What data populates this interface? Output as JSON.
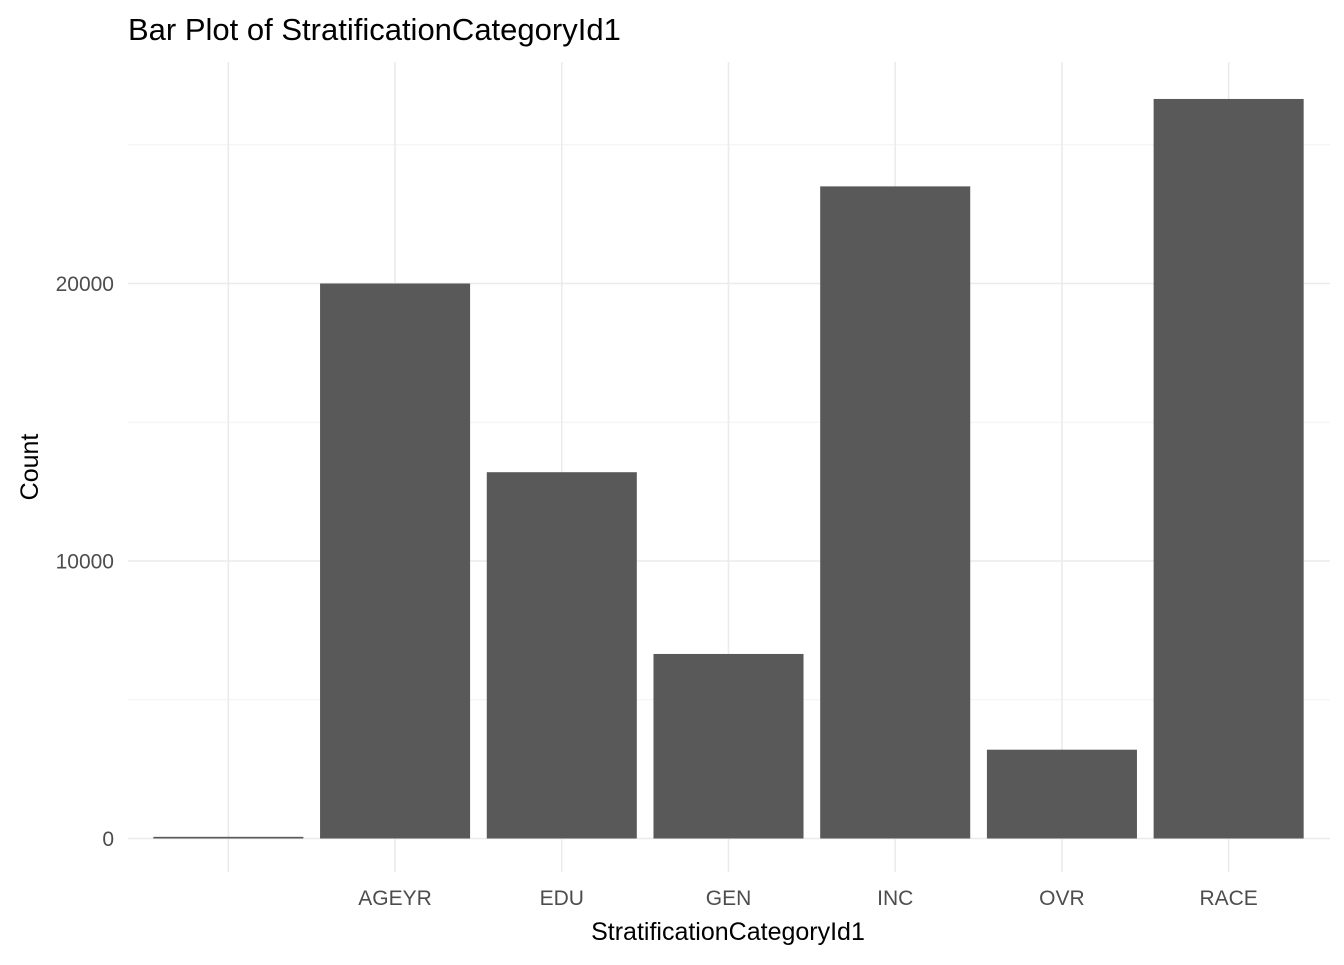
{
  "chart_data": {
    "type": "bar",
    "title": "Bar Plot of StratificationCategoryId1",
    "xlabel": "StratificationCategoryId1",
    "ylabel": "Count",
    "categories": [
      "",
      "AGEYR",
      "EDU",
      "GEN",
      "INC",
      "OVR",
      "RACE"
    ],
    "values": [
      60,
      20000,
      13200,
      6650,
      23500,
      3200,
      26650
    ],
    "ylim": [
      0,
      27500
    ],
    "yticks": [
      0,
      10000,
      20000
    ],
    "ytick_labels": [
      "0",
      "10000",
      "20000"
    ],
    "grid": true,
    "legend": "none",
    "colors": {
      "bar": "#595959",
      "grid_major": "#ebebeb",
      "grid_minor": "#f2f2f2",
      "tick_text": "#4d4d4d",
      "background": "#ffffff"
    }
  }
}
